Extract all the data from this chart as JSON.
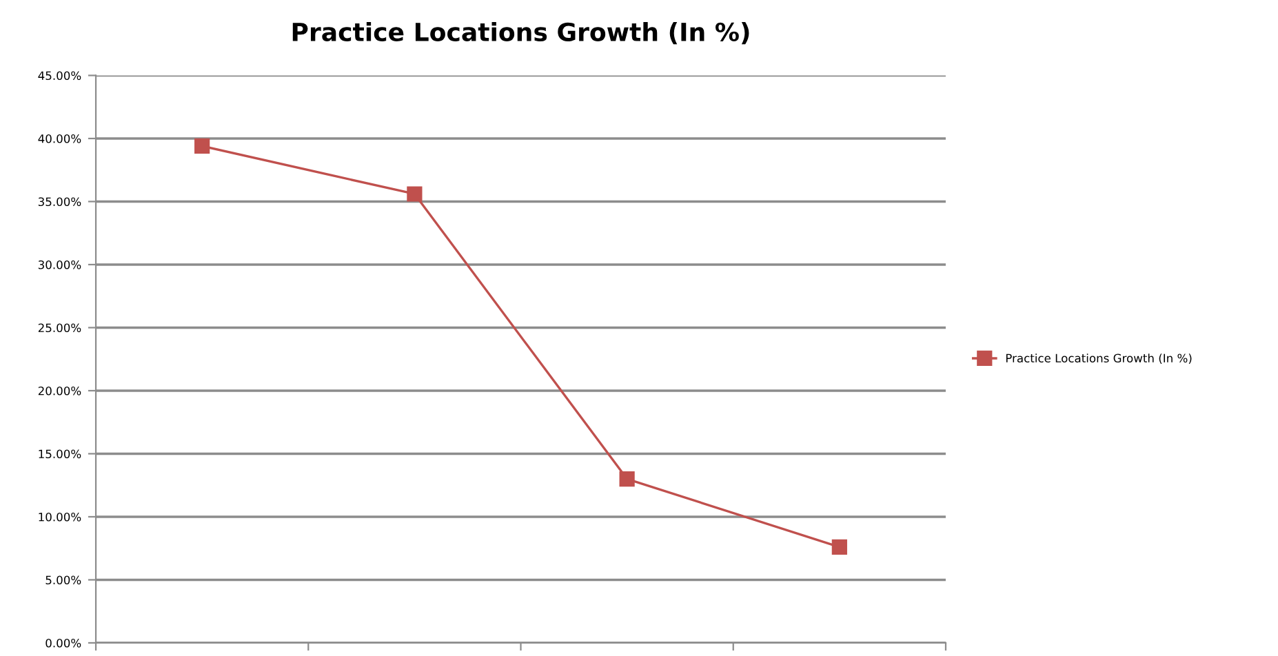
{
  "chart_data": {
    "type": "line",
    "title": "Practice Locations Growth (In %)",
    "categories": [
      null,
      null,
      null,
      null
    ],
    "series": [
      {
        "name": "Practice Locations Growth (In %)",
        "color": "#c0504d",
        "values": [
          39.4,
          35.6,
          13.0,
          7.6
        ]
      }
    ],
    "ylim": [
      0,
      45
    ],
    "yticks": [
      {
        "value": 0,
        "label": "0.00%"
      },
      {
        "value": 5,
        "label": "5.00%"
      },
      {
        "value": 10,
        "label": "10.00%"
      },
      {
        "value": 15,
        "label": "15.00%"
      },
      {
        "value": 20,
        "label": "20.00%"
      },
      {
        "value": 25,
        "label": "25.00%"
      },
      {
        "value": 30,
        "label": "30.00%"
      },
      {
        "value": 35,
        "label": "35.00%"
      },
      {
        "value": 40,
        "label": "40.00%"
      },
      {
        "value": 45,
        "label": "45.00%"
      }
    ],
    "grid": "y",
    "legend": "right",
    "marker": "square",
    "line_style": "solid"
  }
}
